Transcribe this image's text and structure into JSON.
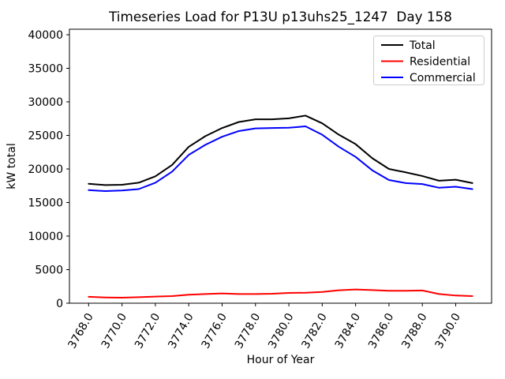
{
  "title": "Timeseries Load for P13U p13uhs25_1247  Day 158",
  "chart_data": {
    "type": "line",
    "title": "Timeseries Load for P13U p13uhs25_1247  Day 158",
    "xlabel": "Hour of Year",
    "ylabel": "kW total",
    "grid": false,
    "legend_position": "upper right",
    "x_tick_rotation_deg": 60,
    "xlim": [
      3766.85,
      3792.15
    ],
    "ylim": [
      0,
      40824
    ],
    "xticks": [
      3768,
      3770,
      3772,
      3774,
      3776,
      3778,
      3780,
      3782,
      3784,
      3786,
      3788,
      3790
    ],
    "xtick_labels": [
      "3768.0",
      "3770.0",
      "3772.0",
      "3774.0",
      "3776.0",
      "3778.0",
      "3780.0",
      "3782.0",
      "3784.0",
      "3786.0",
      "3788.0",
      "3790.0"
    ],
    "yticks": [
      0,
      5000,
      10000,
      15000,
      20000,
      25000,
      30000,
      35000,
      40000
    ],
    "ytick_labels": [
      "0",
      "5000",
      "10000",
      "15000",
      "20000",
      "25000",
      "30000",
      "35000",
      "40000"
    ],
    "x": [
      3768,
      3769,
      3770,
      3771,
      3772,
      3773,
      3774,
      3775,
      3776,
      3777,
      3778,
      3779,
      3780,
      3781,
      3782,
      3783,
      3784,
      3785,
      3786,
      3787,
      3788,
      3789,
      3790,
      3791
    ],
    "series": [
      {
        "name": "Total",
        "color": "#000000",
        "values": [
          17800,
          17600,
          17650,
          17950,
          18900,
          20600,
          23300,
          24900,
          26100,
          27000,
          27400,
          27400,
          27550,
          27950,
          26800,
          25100,
          23700,
          21600,
          20000,
          19500,
          18950,
          18250,
          18400,
          17900
        ]
      },
      {
        "name": "Residential",
        "color": "#ff0000",
        "values": [
          950,
          860,
          820,
          900,
          980,
          1060,
          1260,
          1370,
          1450,
          1370,
          1370,
          1410,
          1530,
          1560,
          1680,
          1920,
          2040,
          1960,
          1850,
          1850,
          1900,
          1370,
          1140,
          1060
        ]
      },
      {
        "name": "Commercial",
        "color": "#0000ff",
        "values": [
          16850,
          16700,
          16800,
          17000,
          17950,
          19600,
          22100,
          23600,
          24800,
          25650,
          26050,
          26100,
          26150,
          26350,
          25100,
          23300,
          21800,
          19800,
          18350,
          17900,
          17750,
          17200,
          17350,
          17000
        ]
      }
    ]
  }
}
